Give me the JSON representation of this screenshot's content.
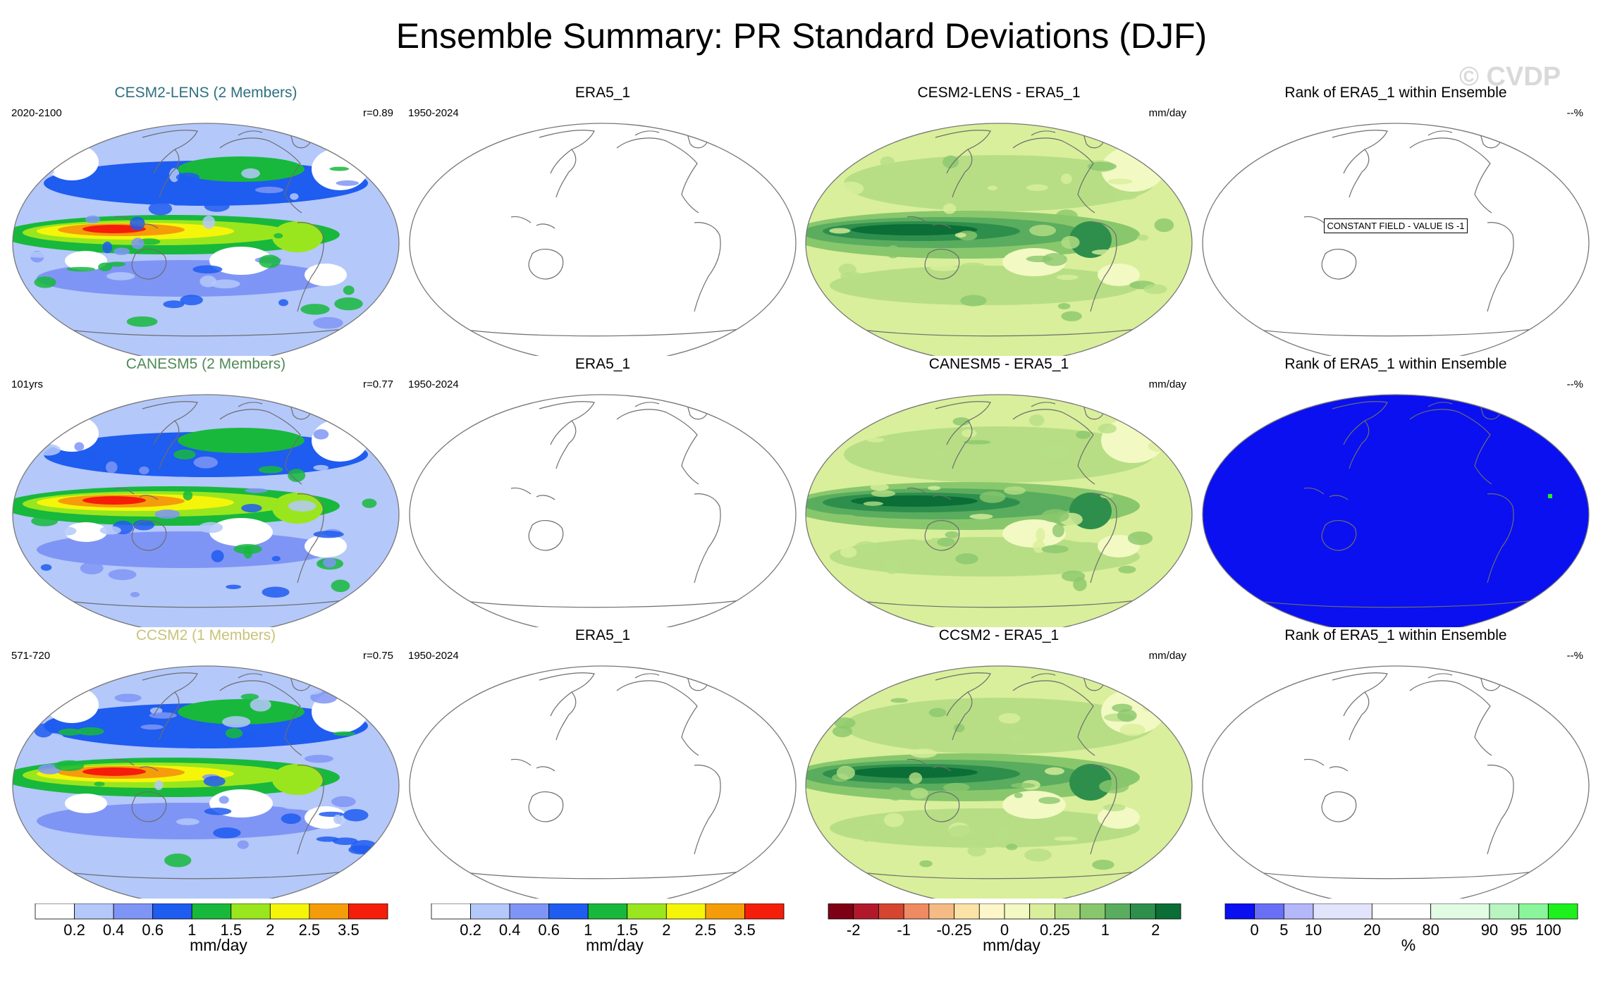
{
  "title": "Ensemble Summary: PR Standard Deviations (DJF)",
  "watermark": "© CVDP",
  "rows": [
    {
      "model": {
        "title": "CESM2-LENS (2 Members)",
        "title_color": "#2e6f80",
        "left": "2020-2100",
        "right": "r=0.89"
      },
      "obs": {
        "title": "ERA5_1",
        "left": "1950-2024"
      },
      "diff": {
        "title": "CESM2-LENS - ERA5_1",
        "right": "mm/day"
      },
      "rank": {
        "title": "Rank of ERA5_1 within Ensemble",
        "right": "--%",
        "fill": "none",
        "note": "CONSTANT FIELD - VALUE IS -1"
      }
    },
    {
      "model": {
        "title": "CANESM5 (2 Members)",
        "title_color": "#4f8a57",
        "left": "101yrs",
        "right": "r=0.77"
      },
      "obs": {
        "title": "ERA5_1",
        "left": "1950-2024"
      },
      "diff": {
        "title": "CANESM5 - ERA5_1",
        "right": "mm/day"
      },
      "rank": {
        "title": "Rank of ERA5_1 within Ensemble",
        "right": "--%",
        "fill": "blue",
        "note": ""
      }
    },
    {
      "model": {
        "title": "CCSM2 (1 Members)",
        "title_color": "#c9c27a",
        "left": "571-720",
        "right": "r=0.75"
      },
      "obs": {
        "title": "ERA5_1",
        "left": "1950-2024"
      },
      "diff": {
        "title": "CCSM2 - ERA5_1",
        "right": "mm/day"
      },
      "rank": {
        "title": "Rank of ERA5_1 within Ensemble",
        "right": "--%",
        "fill": "none",
        "note": ""
      }
    }
  ],
  "colorbars": {
    "precip": {
      "unit": "mm/day",
      "colors": [
        "#ffffff",
        "#b4c8fa",
        "#7f95f5",
        "#1f5cf0",
        "#18b83c",
        "#9ae61e",
        "#f5f50a",
        "#f59c0a",
        "#f51e0a"
      ],
      "labels": [
        "0.2",
        "0.4",
        "0.6",
        "1",
        "1.5",
        "2",
        "2.5",
        "3.5"
      ]
    },
    "diff": {
      "unit": "mm/day",
      "colors": [
        "#7d0015",
        "#b2182b",
        "#d6452f",
        "#ef8a62",
        "#f6bb85",
        "#fbe3a8",
        "#fdf6c8",
        "#f2f9c2",
        "#d9ef9b",
        "#b7de85",
        "#89c76d",
        "#5aad5e",
        "#2e8f4c",
        "#0b6e36"
      ],
      "labels": [
        "-2",
        "-1",
        "-0.25",
        "0",
        "0.25",
        "1",
        "2"
      ],
      "label_bounds": [
        1,
        3,
        5,
        7,
        9,
        11,
        13
      ]
    },
    "rank": {
      "unit": "%",
      "colors": [
        "#0a10f0",
        "#6a70f5",
        "#b4b8fa",
        "#e2e4fc",
        "#ffffff",
        "#e2fce4",
        "#b8f5c0",
        "#8af59a",
        "#1ef01e"
      ],
      "widths": [
        1,
        1,
        1,
        2,
        2,
        2,
        1,
        1,
        1
      ],
      "labels": [
        "0",
        "5",
        "10",
        "20",
        "80",
        "90",
        "95",
        "100"
      ]
    }
  },
  "chart_data": [
    {
      "type": "heatmap",
      "title": "CESM2-LENS (2 Members)",
      "period": "2020-2100",
      "pattern_correlation": 0.89,
      "variable": "PR standard deviation (DJF)",
      "units": "mm/day",
      "levels": [
        0.2,
        0.4,
        0.6,
        1,
        1.5,
        2,
        2.5,
        3.5
      ]
    },
    {
      "type": "heatmap",
      "title": "CANESM5 (2 Members)",
      "period": "101yrs",
      "pattern_correlation": 0.77,
      "variable": "PR standard deviation (DJF)",
      "units": "mm/day",
      "levels": [
        0.2,
        0.4,
        0.6,
        1,
        1.5,
        2,
        2.5,
        3.5
      ]
    },
    {
      "type": "heatmap",
      "title": "CCSM2 (1 Members)",
      "period": "571-720",
      "pattern_correlation": 0.75,
      "variable": "PR standard deviation (DJF)",
      "units": "mm/day",
      "levels": [
        0.2,
        0.4,
        0.6,
        1,
        1.5,
        2,
        2.5,
        3.5
      ]
    },
    {
      "type": "heatmap",
      "title": "ERA5_1",
      "period": "1950-2024",
      "units": "mm/day",
      "note": "blank field"
    },
    {
      "type": "heatmap",
      "title": "CESM2-LENS - ERA5_1",
      "units": "mm/day",
      "levels": [
        -2,
        -1,
        -0.25,
        0,
        0.25,
        1,
        2
      ]
    },
    {
      "type": "heatmap",
      "title": "CANESM5 - ERA5_1",
      "units": "mm/day",
      "levels": [
        -2,
        -1,
        -0.25,
        0,
        0.25,
        1,
        2
      ]
    },
    {
      "type": "heatmap",
      "title": "CCSM2 - ERA5_1",
      "units": "mm/day",
      "levels": [
        -2,
        -1,
        -0.25,
        0,
        0.25,
        1,
        2
      ]
    },
    {
      "type": "heatmap",
      "title": "Rank of ERA5_1 within Ensemble",
      "units": "%",
      "levels": [
        0,
        5,
        10,
        20,
        80,
        90,
        95,
        100
      ]
    }
  ]
}
